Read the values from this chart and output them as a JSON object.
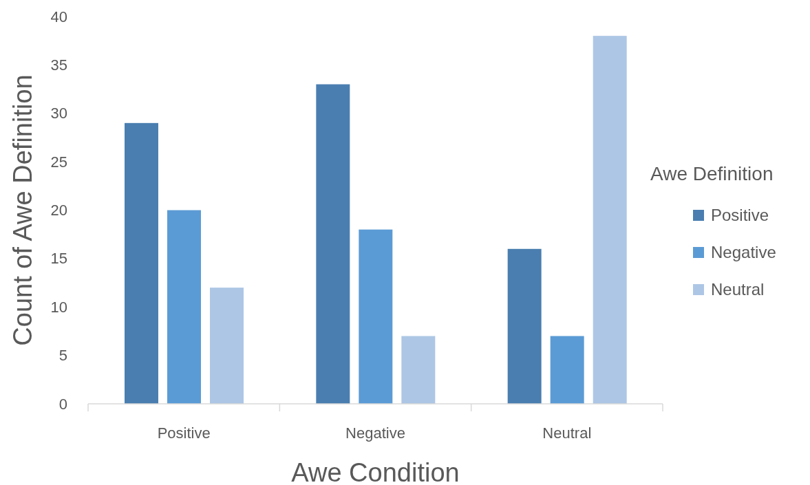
{
  "chart_data": {
    "type": "bar",
    "xlabel": "Awe Condition",
    "ylabel": "Count of Awe Definition",
    "legend_title": "Awe Definition",
    "categories": [
      "Positive",
      "Negative",
      "Neutral"
    ],
    "series": [
      {
        "name": "Positive",
        "color": "#4a7eb0",
        "values": [
          29,
          33,
          16
        ]
      },
      {
        "name": "Negative",
        "color": "#5b9bd5",
        "values": [
          20,
          18,
          7
        ]
      },
      {
        "name": "Neutral",
        "color": "#adc6e5",
        "values": [
          12,
          7,
          38
        ]
      }
    ],
    "ylim": [
      0,
      40
    ],
    "yticks": [
      0,
      5,
      10,
      15,
      20,
      25,
      30,
      35,
      40
    ],
    "grid": false,
    "legend": "right"
  }
}
